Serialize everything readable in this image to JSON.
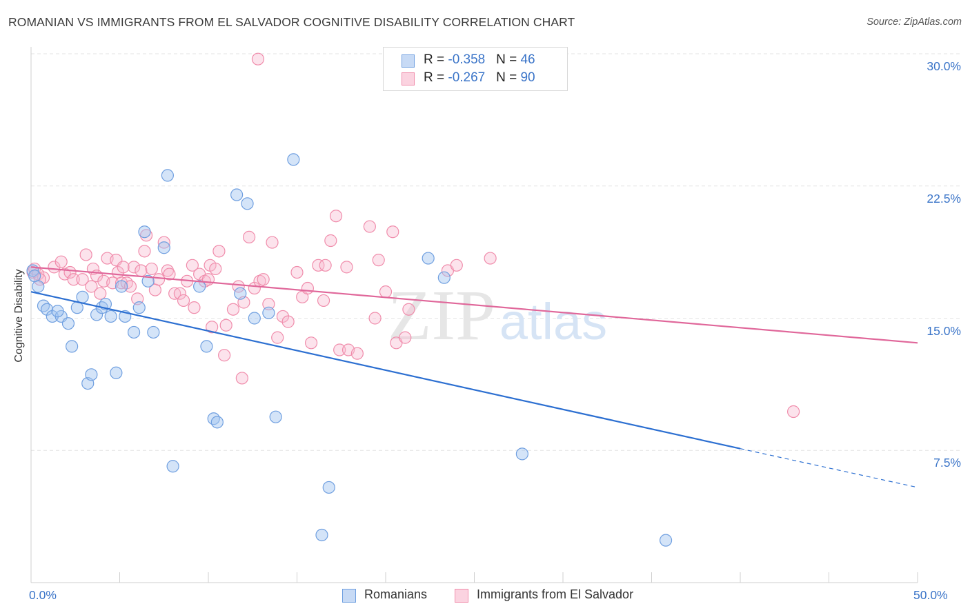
{
  "title": "ROMANIAN VS IMMIGRANTS FROM EL SALVADOR COGNITIVE DISABILITY CORRELATION CHART",
  "source": "Source: ZipAtlas.com",
  "watermark": {
    "zip": "ZIP",
    "atlas": "atlas"
  },
  "legend": {
    "rows": [
      {
        "r_label": "R = ",
        "r_value": "-0.358",
        "n_label": "N = ",
        "n_value": "46"
      },
      {
        "r_label": "R = ",
        "r_value": "-0.267",
        "n_label": "N = ",
        "n_value": "90"
      }
    ]
  },
  "chart_data": {
    "type": "scatter",
    "title": "ROMANIAN VS IMMIGRANTS FROM EL SALVADOR COGNITIVE DISABILITY CORRELATION CHART",
    "xlabel": "",
    "ylabel": "Cognitive Disability",
    "xlim": [
      0,
      50
    ],
    "ylim": [
      0,
      30.7
    ],
    "x_tick_labels": [
      "0.0%",
      "50.0%"
    ],
    "y_ticks": [
      7.5,
      15.0,
      22.5,
      30.0
    ],
    "y_tick_labels": [
      "7.5%",
      "15.0%",
      "22.5%",
      "30.0%"
    ],
    "grid": true,
    "colors": {
      "romanians": "#6f9fe0",
      "salvador": "#f08cab",
      "romanians_line": "#2c6fd1",
      "salvador_line": "#e0679a",
      "tick_text": "#3a74c8"
    },
    "series": [
      {
        "name": "Romanians",
        "R": -0.358,
        "N": 46,
        "trend": {
          "x0": 0,
          "y0": 16.5,
          "x1": 40,
          "y1": 7.6,
          "dashed_to_x": 50,
          "dashed_to_y": 5.4
        },
        "points": [
          [
            0.1,
            17.7
          ],
          [
            0.2,
            17.4
          ],
          [
            0.4,
            16.8
          ],
          [
            0.7,
            15.7
          ],
          [
            0.9,
            15.5
          ],
          [
            1.2,
            15.1
          ],
          [
            1.7,
            15.1
          ],
          [
            1.5,
            15.4
          ],
          [
            2.1,
            14.7
          ],
          [
            2.3,
            13.4
          ],
          [
            2.6,
            15.6
          ],
          [
            2.9,
            16.2
          ],
          [
            3.2,
            11.3
          ],
          [
            3.4,
            11.8
          ],
          [
            3.7,
            15.2
          ],
          [
            4.0,
            15.6
          ],
          [
            4.2,
            15.8
          ],
          [
            4.5,
            15.1
          ],
          [
            4.8,
            11.9
          ],
          [
            5.1,
            16.8
          ],
          [
            5.3,
            15.1
          ],
          [
            5.8,
            14.2
          ],
          [
            6.1,
            15.6
          ],
          [
            6.4,
            19.9
          ],
          [
            6.6,
            17.1
          ],
          [
            6.9,
            14.2
          ],
          [
            7.5,
            19.0
          ],
          [
            7.7,
            23.1
          ],
          [
            8.0,
            6.6
          ],
          [
            9.5,
            16.8
          ],
          [
            9.9,
            13.4
          ],
          [
            10.3,
            9.3
          ],
          [
            10.5,
            9.1
          ],
          [
            11.6,
            22.0
          ],
          [
            11.8,
            16.4
          ],
          [
            12.2,
            21.5
          ],
          [
            12.6,
            15.0
          ],
          [
            13.4,
            15.3
          ],
          [
            13.8,
            9.4
          ],
          [
            14.8,
            24.0
          ],
          [
            16.4,
            2.7
          ],
          [
            16.8,
            5.4
          ],
          [
            22.4,
            18.4
          ],
          [
            23.3,
            17.3
          ],
          [
            27.7,
            7.3
          ],
          [
            35.8,
            2.4
          ]
        ]
      },
      {
        "name": "Immigrants from El Salvador",
        "R": -0.267,
        "N": 90,
        "trend": {
          "x0": 0,
          "y0": 17.9,
          "x1": 50,
          "y1": 13.6
        },
        "points": [
          [
            0.1,
            17.6
          ],
          [
            0.2,
            17.8
          ],
          [
            0.4,
            17.5
          ],
          [
            0.7,
            17.3
          ],
          [
            1.3,
            17.9
          ],
          [
            1.7,
            18.2
          ],
          [
            1.9,
            17.5
          ],
          [
            2.2,
            17.6
          ],
          [
            2.4,
            17.2
          ],
          [
            2.9,
            17.2
          ],
          [
            3.1,
            18.6
          ],
          [
            3.4,
            16.8
          ],
          [
            3.5,
            17.8
          ],
          [
            3.7,
            17.4
          ],
          [
            3.9,
            16.4
          ],
          [
            4.1,
            17.1
          ],
          [
            4.3,
            18.4
          ],
          [
            4.6,
            17.0
          ],
          [
            4.8,
            18.3
          ],
          [
            4.9,
            17.6
          ],
          [
            5.1,
            17.0
          ],
          [
            5.2,
            17.9
          ],
          [
            5.4,
            17.0
          ],
          [
            5.6,
            16.8
          ],
          [
            5.8,
            17.9
          ],
          [
            6.0,
            16.1
          ],
          [
            6.2,
            17.7
          ],
          [
            6.4,
            18.8
          ],
          [
            6.5,
            19.7
          ],
          [
            6.8,
            17.8
          ],
          [
            7.0,
            16.6
          ],
          [
            7.2,
            17.2
          ],
          [
            7.5,
            19.3
          ],
          [
            7.7,
            17.7
          ],
          [
            7.8,
            17.5
          ],
          [
            8.1,
            16.4
          ],
          [
            8.4,
            16.4
          ],
          [
            8.6,
            16.0
          ],
          [
            8.8,
            17.1
          ],
          [
            9.1,
            18.0
          ],
          [
            9.2,
            15.6
          ],
          [
            9.5,
            17.5
          ],
          [
            9.8,
            17.1
          ],
          [
            10.0,
            17.2
          ],
          [
            10.1,
            18.0
          ],
          [
            10.2,
            14.5
          ],
          [
            10.4,
            17.8
          ],
          [
            10.6,
            18.8
          ],
          [
            10.9,
            12.9
          ],
          [
            11.0,
            14.6
          ],
          [
            11.4,
            15.5
          ],
          [
            11.7,
            16.8
          ],
          [
            11.9,
            11.6
          ],
          [
            12.0,
            15.9
          ],
          [
            12.3,
            19.6
          ],
          [
            12.6,
            16.7
          ],
          [
            12.9,
            17.1
          ],
          [
            13.1,
            17.2
          ],
          [
            13.4,
            15.8
          ],
          [
            13.6,
            19.3
          ],
          [
            13.9,
            13.9
          ],
          [
            14.2,
            15.1
          ],
          [
            14.5,
            14.8
          ],
          [
            15.0,
            17.6
          ],
          [
            15.3,
            16.2
          ],
          [
            15.6,
            16.7
          ],
          [
            15.8,
            13.6
          ],
          [
            16.2,
            18.0
          ],
          [
            16.5,
            16.0
          ],
          [
            16.6,
            18.0
          ],
          [
            16.9,
            19.4
          ],
          [
            17.4,
            13.2
          ],
          [
            17.8,
            17.9
          ],
          [
            17.9,
            13.2
          ],
          [
            18.4,
            13.0
          ],
          [
            19.1,
            20.2
          ],
          [
            19.4,
            15.0
          ],
          [
            19.6,
            18.3
          ],
          [
            20.0,
            16.5
          ],
          [
            20.4,
            19.9
          ],
          [
            20.6,
            13.6
          ],
          [
            21.1,
            13.9
          ],
          [
            21.3,
            15.5
          ],
          [
            23.5,
            17.7
          ],
          [
            24.0,
            18.0
          ],
          [
            25.9,
            18.4
          ],
          [
            17.2,
            20.8
          ],
          [
            12.8,
            29.7
          ],
          [
            0.5,
            17.2
          ],
          [
            43.0,
            9.7
          ]
        ]
      }
    ]
  },
  "bottom_legend": {
    "items": [
      {
        "label": "Romanians"
      },
      {
        "label": "Immigrants from El Salvador"
      }
    ]
  }
}
